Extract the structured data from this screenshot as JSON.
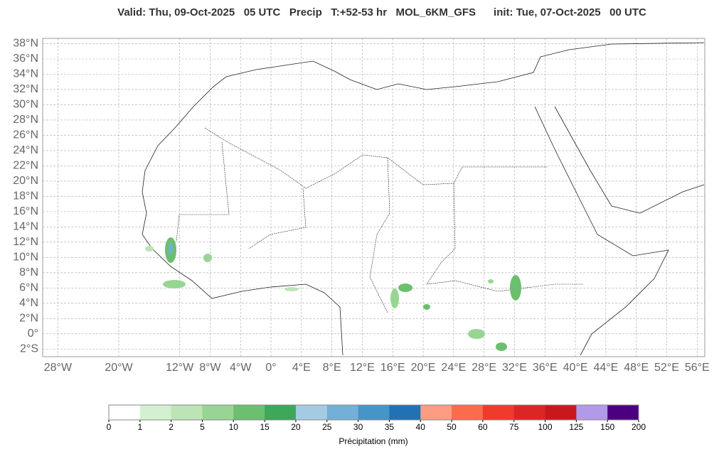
{
  "map": {
    "title": "Valid: Thu, 09-Oct-2025   05 UTC   Precip   T:+52-53 hr   MOL_6KM_GFS      init: Tue, 07-Oct-2025   00 UTC",
    "xlim": [
      -30,
      57
    ],
    "ylim": [
      -3,
      38.7
    ],
    "xticks": [
      {
        "value": -28,
        "label": "28°W"
      },
      {
        "value": -20,
        "label": "20°W"
      },
      {
        "value": -12,
        "label": "12°W"
      },
      {
        "value": -8,
        "label": "8°W"
      },
      {
        "value": -4,
        "label": "4°W"
      },
      {
        "value": 0,
        "label": "0°"
      },
      {
        "value": 4,
        "label": "4°E"
      },
      {
        "value": 8,
        "label": "8°E"
      },
      {
        "value": 12,
        "label": "12°E"
      },
      {
        "value": 16,
        "label": "16°E"
      },
      {
        "value": 20,
        "label": "20°E"
      },
      {
        "value": 24,
        "label": "24°E"
      },
      {
        "value": 28,
        "label": "28°E"
      },
      {
        "value": 32,
        "label": "32°E"
      },
      {
        "value": 36,
        "label": "36°E"
      },
      {
        "value": 40,
        "label": "40°E"
      },
      {
        "value": 44,
        "label": "44°E"
      },
      {
        "value": 48,
        "label": "48°E"
      },
      {
        "value": 52,
        "label": "52°E"
      },
      {
        "value": 56,
        "label": "56°E"
      }
    ],
    "yticks": [
      {
        "value": 38,
        "label": "38°N"
      },
      {
        "value": 36,
        "label": "36°N"
      },
      {
        "value": 34,
        "label": "34°N"
      },
      {
        "value": 32,
        "label": "32°N"
      },
      {
        "value": 30,
        "label": "30°N"
      },
      {
        "value": 28,
        "label": "28°N"
      },
      {
        "value": 26,
        "label": "26°N"
      },
      {
        "value": 24,
        "label": "24°N"
      },
      {
        "value": 22,
        "label": "22°N"
      },
      {
        "value": 20,
        "label": "20°N"
      },
      {
        "value": 18,
        "label": "18°N"
      },
      {
        "value": 16,
        "label": "16°N"
      },
      {
        "value": 14,
        "label": "14°N"
      },
      {
        "value": 12,
        "label": "12°N"
      },
      {
        "value": 10,
        "label": "10°N"
      },
      {
        "value": 8,
        "label": "8°N"
      },
      {
        "value": 6,
        "label": "6°N"
      },
      {
        "value": 4,
        "label": "4°N"
      },
      {
        "value": 2,
        "label": "2°N"
      },
      {
        "value": 0,
        "label": "0°"
      },
      {
        "value": -2,
        "label": "2°S"
      }
    ],
    "grid": true,
    "colorbar": {
      "label": "Précipitation (mm)",
      "ticks": [
        0,
        1,
        2,
        5,
        10,
        15,
        20,
        25,
        30,
        35,
        40,
        50,
        60,
        75,
        100,
        125,
        150,
        200
      ],
      "colors": [
        "#ffffff",
        "#d3f0d0",
        "#bce4b5",
        "#98d594",
        "#6bbf6e",
        "#3da75a",
        "#a3cbe4",
        "#74afd8",
        "#4695c8",
        "#2171b5",
        "#fc9c82",
        "#fb6c4c",
        "#ef3b2c",
        "#dc2626",
        "#c9181d",
        "#b29ae8",
        "#4c0080"
      ]
    }
  }
}
